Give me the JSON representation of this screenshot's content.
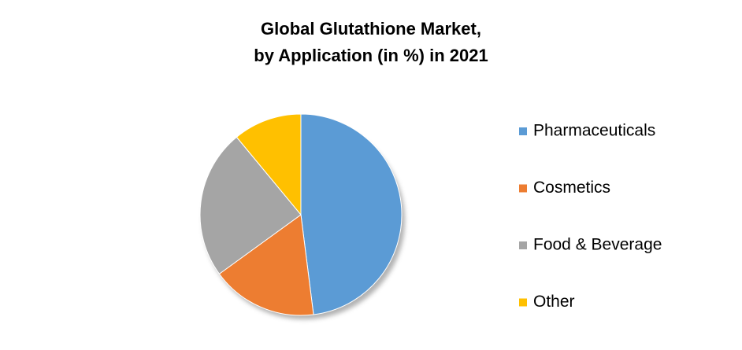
{
  "chart_data": {
    "type": "pie",
    "title": [
      "Global Glutathione Market,",
      "by Application (in %) in 2021"
    ],
    "categories": [
      "Pharmaceuticals",
      "Cosmetics",
      "Food & Beverage",
      "Other"
    ],
    "values": [
      48,
      17,
      24,
      11
    ],
    "colors": [
      "#5b9bd5",
      "#ed7d31",
      "#a5a5a5",
      "#ffc000"
    ],
    "legend": "right"
  }
}
